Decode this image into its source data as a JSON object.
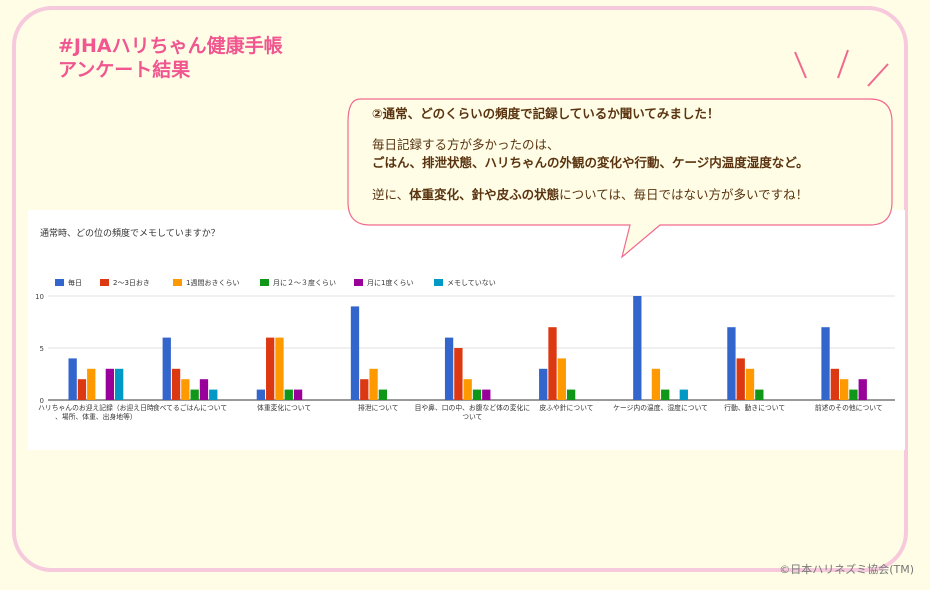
{
  "header": {
    "title_line1": "#JHAハリちゃん健康手帳",
    "title_line2": "アンケート結果"
  },
  "bubble": {
    "question": "②通常、どのくらいの頻度で記録しているか聞いてみました！",
    "line1": "毎日記録する方が多かったのは、",
    "line2": "ごはん、排泄状態、ハリちゃんの外観の変化や行動、ケージ内温度湿度など。",
    "line3_a": "逆に、",
    "line3_b": "体重変化、針や皮ふの状態",
    "line3_c": "については、毎日ではない方が多いですね！"
  },
  "copyright": "©日本ハリネズミ協会(TM)",
  "colors": {
    "pink_frame": "#f7c9dd",
    "title_pink": "#f0568f",
    "bubble_border": "#f06a8f"
  },
  "chart_data": {
    "type": "bar",
    "title": "通常時、どの位の頻度でメモしていますか？",
    "ylim": [
      0,
      10
    ],
    "yticks": [
      0,
      5,
      10
    ],
    "grid": true,
    "legend_position": "top-left",
    "categories": [
      "ハリちゃんのお迎え記録（お迎え日時、場所、体重、出身地等）",
      "食べてるごはんについて",
      "体重変化について",
      "排泄について",
      "目や鼻、口の中、お腹など体の変化について",
      "皮ふや針について",
      "ケージ内の温度、湿度について",
      "行動、動きについて",
      "前述のその他について"
    ],
    "series": [
      {
        "name": "毎日",
        "color": "#3366cc",
        "values": [
          4,
          6,
          1,
          9,
          6,
          3,
          10,
          7,
          7
        ]
      },
      {
        "name": "2〜3日おき",
        "color": "#dc3912",
        "values": [
          2,
          3,
          6,
          2,
          5,
          7,
          0,
          4,
          3
        ]
      },
      {
        "name": "1週間おきくらい",
        "color": "#ff9900",
        "values": [
          3,
          2,
          6,
          3,
          2,
          4,
          3,
          3,
          2
        ]
      },
      {
        "name": "月に２～３度くらい",
        "color": "#109618",
        "values": [
          0,
          1,
          1,
          1,
          1,
          1,
          1,
          1,
          1
        ]
      },
      {
        "name": "月に1度くらい",
        "color": "#990099",
        "values": [
          3,
          2,
          1,
          0,
          1,
          0,
          0,
          0,
          2
        ]
      },
      {
        "name": "メモしていない",
        "color": "#0099c6",
        "values": [
          3,
          1,
          0,
          0,
          0,
          0,
          1,
          0,
          0
        ]
      }
    ]
  }
}
